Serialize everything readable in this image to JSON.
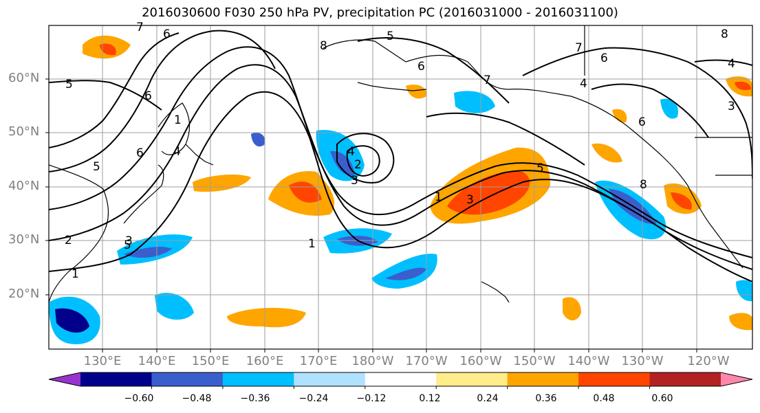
{
  "title": "2016030600 F030 250 hPa PV, precipitation PC (2016031000 - 2016031100)",
  "lat_labels": [
    "60°N",
    "50°N",
    "40°N",
    "30°N",
    "20°N"
  ],
  "lon_labels": [
    "130°E",
    "140°E",
    "150°E",
    "160°E",
    "170°E",
    "180°W",
    "170°W",
    "160°W",
    "150°W",
    "140°W",
    "130°W",
    "120°W"
  ],
  "colorbar": {
    "colors": [
      "#9932cc",
      "#00008b",
      "#3a5fcd",
      "#00bfff",
      "#b0e2ff",
      "#ffffff",
      "#ffec8b",
      "#ffa500",
      "#ff4500",
      "#b22222",
      "#ff88aa"
    ],
    "tick_labels": [
      "−0.60",
      "−0.48",
      "−0.36",
      "−0.24",
      "−0.12",
      "0.12",
      "0.24",
      "0.36",
      "0.48",
      "0.60"
    ]
  },
  "contour_labels": [
    "7",
    "6",
    "5",
    "6",
    "8",
    "5",
    "6",
    "7",
    "6",
    "7",
    "4",
    "8",
    "4",
    "3",
    "5",
    "6",
    "5",
    "6",
    "1",
    "4",
    "4",
    "2",
    "3",
    "1",
    "3",
    "5",
    "8",
    "2",
    "3",
    "1",
    "1"
  ]
}
